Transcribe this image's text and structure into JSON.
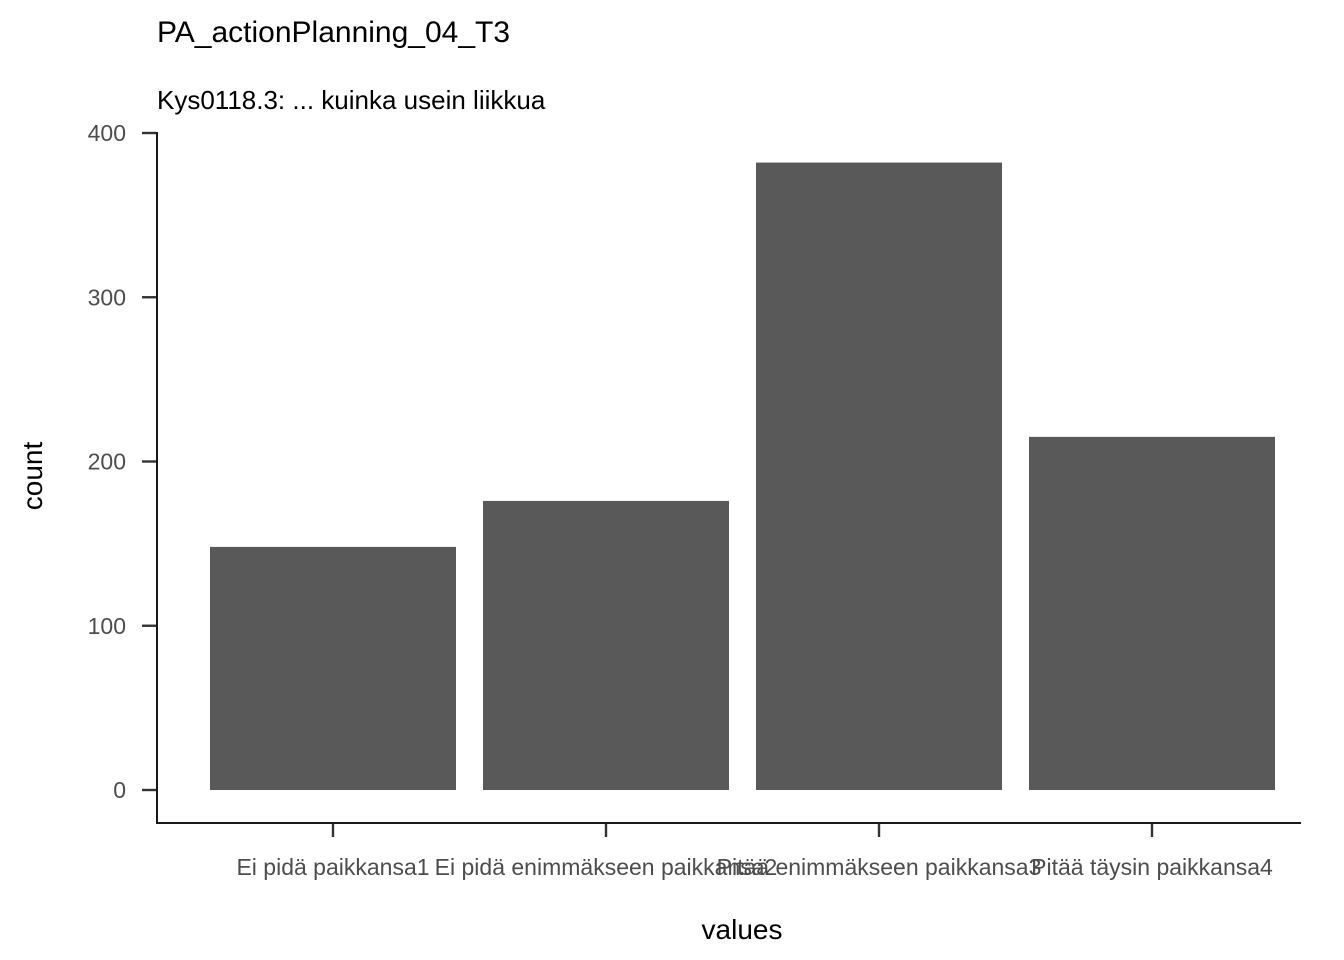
{
  "chart_data": {
    "type": "bar",
    "title": "PA_actionPlanning_04_T3",
    "subtitle": "Kys0118.3: ... kuinka usein liikkua",
    "xlabel": "values",
    "ylabel": "count",
    "categories": [
      "Ei pidä paikkansa1",
      "Ei pidä enimmäkseen paikkansa2",
      "Pitää enimmäkseen paikkansa3",
      "Pitää täysin paikkansa4"
    ],
    "values": [
      148,
      176,
      382,
      215
    ],
    "ylim": [
      0,
      400
    ],
    "yticks": [
      0,
      100,
      200,
      300,
      400
    ],
    "bar_color": "#595959",
    "grid": false
  }
}
